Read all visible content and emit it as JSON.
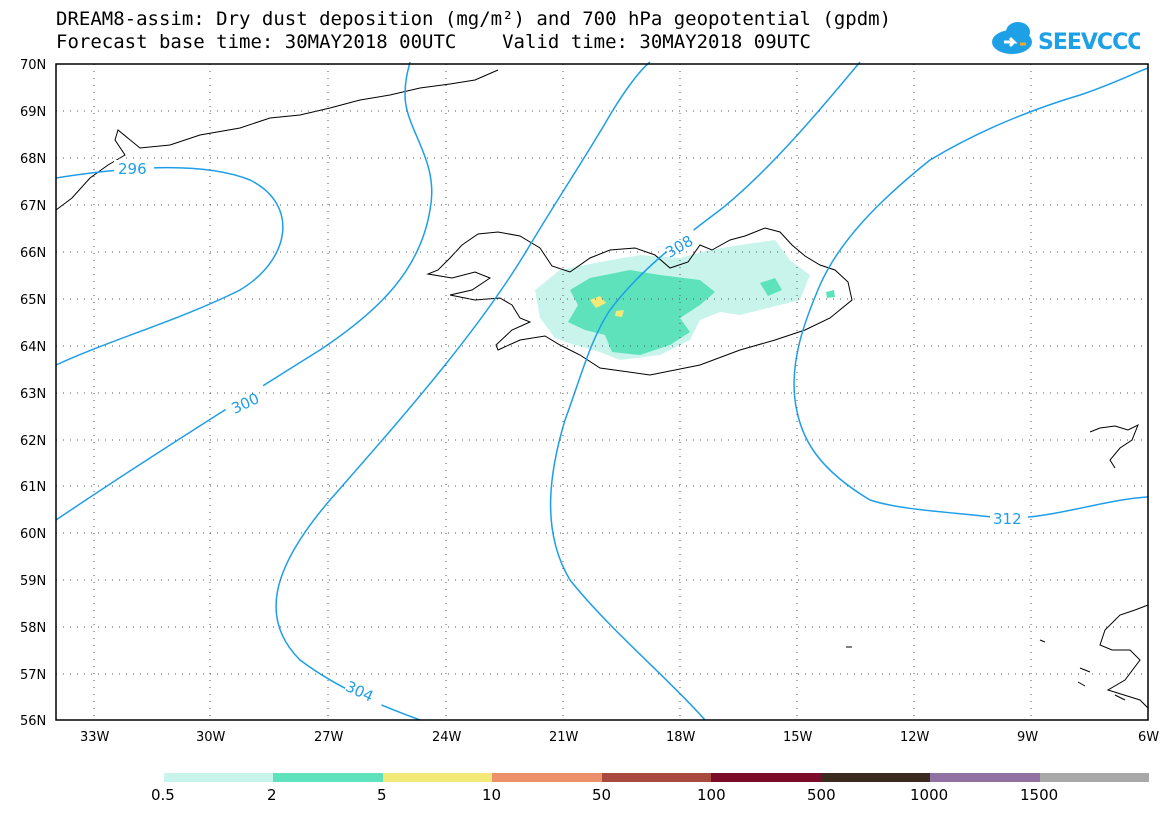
{
  "header": {
    "title": "DREAM8-assim: Dry dust deposition (mg/m²) and 700 hPa geopotential (gpdm)",
    "subtitle": "Forecast base time: 30MAY2018 00UTC    Valid time: 30MAY2018 09UTC"
  },
  "logo": {
    "text": "SEEVCCC",
    "icon": "cloud-icon",
    "color": "#1ea0e6"
  },
  "map": {
    "lat_labels": [
      "70N",
      "69N",
      "68N",
      "67N",
      "66N",
      "65N",
      "64N",
      "63N",
      "62N",
      "61N",
      "60N",
      "59N",
      "58N",
      "57N",
      "56N"
    ],
    "lon_labels": [
      "33W",
      "30W",
      "27W",
      "24W",
      "21W",
      "18W",
      "15W",
      "12W",
      "9W",
      "6W"
    ],
    "contour_labels": [
      "296",
      "300",
      "304",
      "308",
      "312"
    ],
    "contour_color": "#1e9ee8",
    "dust_colors": {
      "low": "#c8f4ec",
      "mid": "#5ee2bc",
      "high": "#f3e978"
    }
  },
  "colorbar": {
    "colors": [
      "#c8f4ec",
      "#5ee2bc",
      "#f3e978",
      "#ec8f6b",
      "#a84a3e",
      "#7a0c2a",
      "#3a2a20",
      "#9170a2",
      "#a8a8a8"
    ],
    "labels": [
      "0.5",
      "2",
      "5",
      "10",
      "50",
      "100",
      "500",
      "1000",
      "1500"
    ]
  }
}
